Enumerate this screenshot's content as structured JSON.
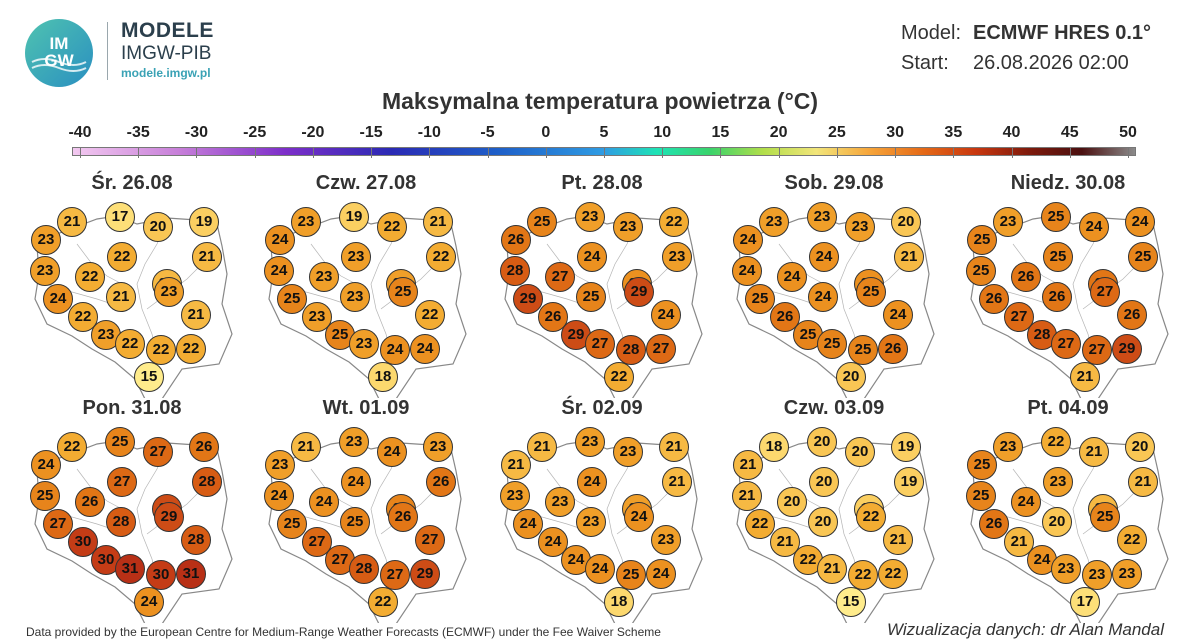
{
  "brand": {
    "logo_text": "IMGW",
    "title": "MODELE",
    "subtitle": "IMGW-PIB",
    "url": "modele.imgw.pl"
  },
  "meta": {
    "model_label": "Model:",
    "model_value": "ECMWF HRES 0.1°",
    "start_label": "Start:",
    "start_value": "26.08.2026 02:00"
  },
  "title": "Maksymalna temperatura powietrza (°C)",
  "scale": {
    "ticks": [
      "-40",
      "-35",
      "-30",
      "-25",
      "-20",
      "-15",
      "-10",
      "-5",
      "0",
      "5",
      "10",
      "15",
      "20",
      "25",
      "30",
      "35",
      "40",
      "45",
      "50"
    ],
    "min": -40,
    "max": 50
  },
  "map_data": {
    "type": "station-map",
    "region": "Poland",
    "variable": "Maksymalna temperatura powietrza",
    "unit": "°C",
    "days": [
      {
        "label": "Śr. 26.08",
        "values": [
          21,
          17,
          20,
          19,
          23,
          22,
          21,
          23,
          22,
          21,
          24,
          21,
          23,
          22,
          21,
          23,
          22,
          22,
          22,
          15
        ]
      },
      {
        "label": "Czw. 27.08",
        "values": [
          23,
          19,
          22,
          21,
          24,
          23,
          22,
          24,
          23,
          23,
          25,
          23,
          25,
          23,
          22,
          25,
          23,
          24,
          24,
          18
        ]
      },
      {
        "label": "Pt. 28.08",
        "values": [
          25,
          23,
          23,
          22,
          26,
          24,
          23,
          28,
          27,
          24,
          29,
          25,
          29,
          26,
          24,
          29,
          27,
          28,
          27,
          22
        ]
      },
      {
        "label": "Sob. 29.08",
        "values": [
          23,
          23,
          23,
          20,
          24,
          24,
          21,
          24,
          24,
          24,
          25,
          24,
          25,
          26,
          24,
          25,
          25,
          25,
          26,
          20
        ]
      },
      {
        "label": "Niedz. 30.08",
        "values": [
          23,
          25,
          24,
          24,
          25,
          25,
          25,
          25,
          26,
          26,
          26,
          26,
          27,
          27,
          26,
          28,
          27,
          27,
          29,
          21
        ]
      },
      {
        "label": "Pon. 31.08",
        "values": [
          22,
          25,
          27,
          26,
          24,
          27,
          28,
          25,
          26,
          29,
          27,
          28,
          29,
          30,
          28,
          30,
          31,
          30,
          31,
          24
        ]
      },
      {
        "label": "Wt. 01.09",
        "values": [
          21,
          23,
          24,
          23,
          23,
          24,
          26,
          24,
          24,
          25,
          25,
          25,
          26,
          27,
          27,
          27,
          28,
          27,
          29,
          22
        ]
      },
      {
        "label": "Śr. 02.09",
        "values": [
          21,
          23,
          23,
          21,
          21,
          24,
          21,
          23,
          23,
          23,
          24,
          23,
          24,
          24,
          23,
          24,
          24,
          25,
          24,
          18
        ]
      },
      {
        "label": "Czw. 03.09",
        "values": [
          18,
          20,
          20,
          19,
          21,
          20,
          19,
          21,
          20,
          19,
          22,
          20,
          22,
          21,
          21,
          22,
          21,
          22,
          22,
          15
        ]
      },
      {
        "label": "Pt. 04.09",
        "values": [
          23,
          22,
          21,
          20,
          25,
          23,
          21,
          25,
          24,
          21,
          26,
          20,
          25,
          21,
          22,
          24,
          23,
          23,
          23,
          17
        ]
      }
    ]
  },
  "footer": {
    "credit": "Data provided by the European Centre for Medium-Range Weather Forecasts (ECMWF) under the Fee Waiver Scheme",
    "author": "Wizualizacja danych: dr Alan Mandal"
  },
  "colors": {
    "brand_text": "#2b3f4c",
    "url_text": "#3aa2b5",
    "map_fill": "#ffffff",
    "map_border": "#888888"
  }
}
